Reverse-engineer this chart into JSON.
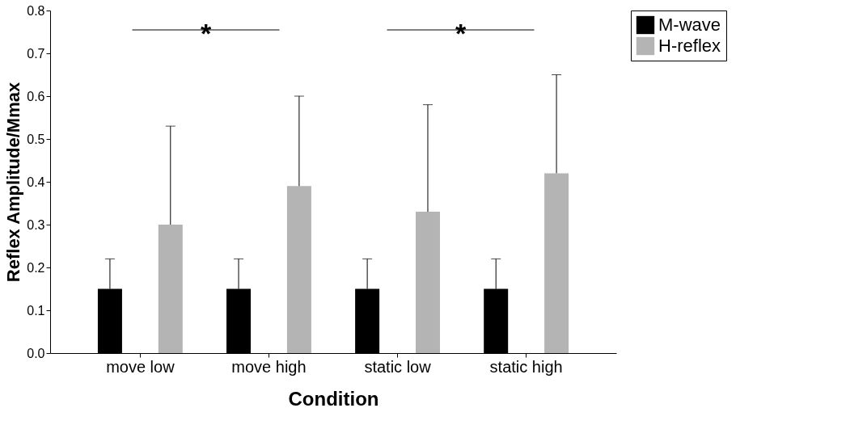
{
  "chart_data": {
    "type": "bar",
    "xlabel": "Condition",
    "ylabel": "Reflex Amplitude/Mmax",
    "categories": [
      "move low",
      "move high",
      "static low",
      "static high"
    ],
    "series": [
      {
        "name": "M-wave",
        "color": "#000000",
        "values": [
          0.15,
          0.15,
          0.15,
          0.15
        ],
        "errors": [
          [
            0.15,
            0.22
          ],
          [
            0.15,
            0.22
          ],
          [
            0.15,
            0.22
          ],
          [
            0.15,
            0.22
          ]
        ]
      },
      {
        "name": "H-reflex",
        "color": "#b4b4b4",
        "values": [
          0.3,
          0.39,
          0.33,
          0.42
        ],
        "errors": [
          [
            0.3,
            0.53
          ],
          [
            0.39,
            0.6
          ],
          [
            0.33,
            0.58
          ],
          [
            0.42,
            0.65
          ]
        ]
      }
    ],
    "ylim": [
      0,
      0.8
    ],
    "yticks": [
      {
        "value": 0,
        "label": "0.0"
      },
      0.1,
      0.2,
      0.3,
      0.4,
      0.5,
      0.6,
      0.7,
      0.8
    ],
    "annotations": [
      "*",
      "*"
    ],
    "legend": "right",
    "grid": false
  }
}
